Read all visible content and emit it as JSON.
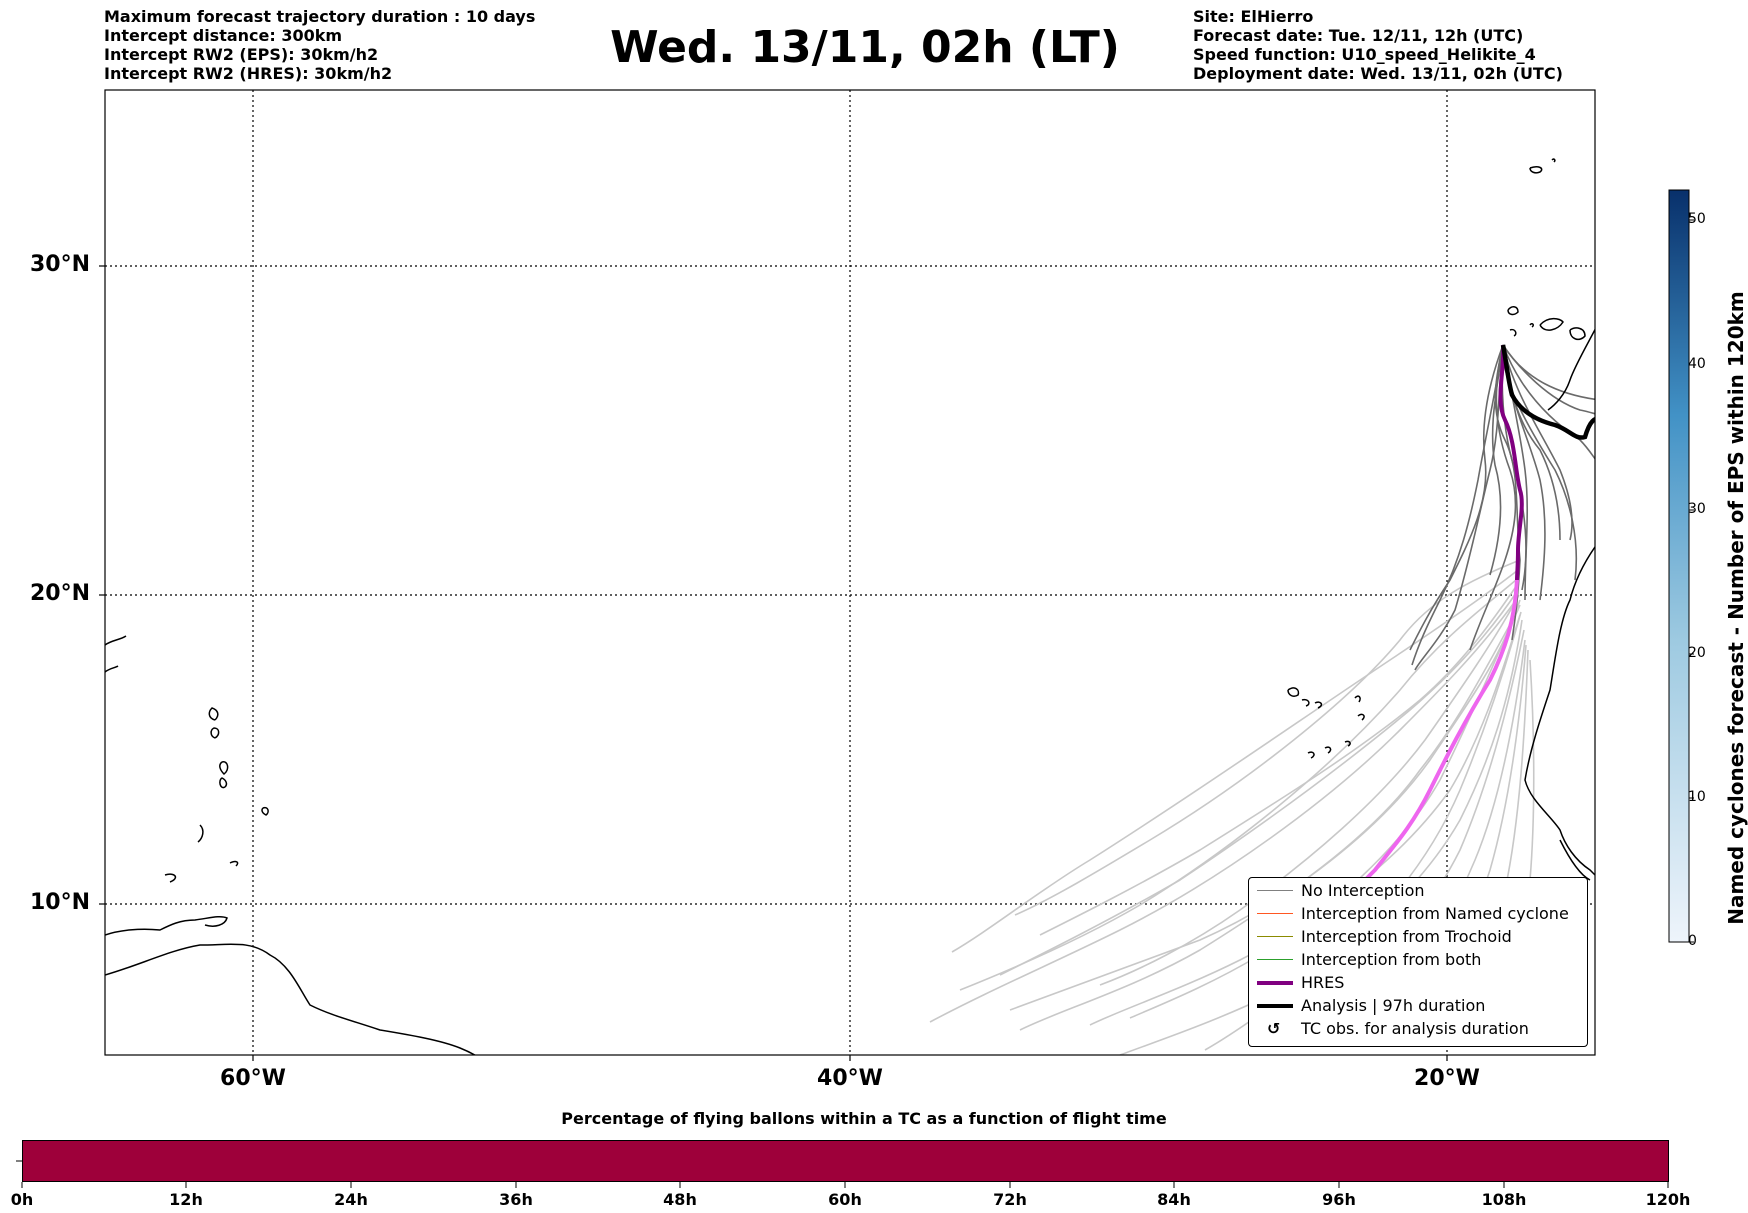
{
  "header": {
    "left_lines": [
      "Maximum forecast trajectory duration : 10 days",
      "Intercept distance: 300km",
      "Intercept RW2 (EPS):  30km/h2",
      "Intercept RW2 (HRES): 30km/h2"
    ],
    "title": "Wed. 13/11, 02h (LT)",
    "right_lines": [
      "Site: ElHierro",
      "Forecast date: Tue. 12/11, 12h (UTC)",
      "Speed function: U10_speed_Helikite_4",
      "Deployment date: Wed. 13/11, 02h (UTC)"
    ]
  },
  "map": {
    "lat_labels": [
      "30°N",
      "20°N",
      "10°N"
    ],
    "lon_labels": [
      "60°W",
      "40°W",
      "20°W"
    ],
    "colors": {
      "eps_track": "#c8c8c8",
      "eps_track_dark": "#6a6a6a",
      "hres": "#800080",
      "hres_later": "#ee66ee",
      "analysis": "#000000",
      "coast": "#000000"
    }
  },
  "legend": {
    "items": [
      {
        "label": "No Interception",
        "color": "#808080",
        "style": "thin"
      },
      {
        "label": "Interception from Named cyclone",
        "color": "#ff5722",
        "style": "thin"
      },
      {
        "label": "Interception from Trochoid",
        "color": "#8b8b00",
        "style": "thin"
      },
      {
        "label": "Interception from both",
        "color": "#2ca02c",
        "style": "thin"
      },
      {
        "label": "HRES",
        "color": "#800080",
        "style": "thick"
      },
      {
        "label": "Analysis | 97h duration",
        "color": "#000000",
        "style": "thick"
      },
      {
        "label": "TC obs. for analysis duration",
        "color": "#000000",
        "style": "symbol",
        "symbol": "↺"
      }
    ]
  },
  "colorbar": {
    "label": "Named cyclones forecast - Number of EPS within 120km",
    "ticks": [
      "0",
      "10",
      "20",
      "30",
      "40",
      "50"
    ],
    "color_low": "#eef4fb",
    "color_high": "#08306b"
  },
  "flight_bar": {
    "title": "Percentage of flying ballons within a TC as a function of flight time",
    "ticks": [
      "0h",
      "12h",
      "24h",
      "36h",
      "48h",
      "60h",
      "72h",
      "84h",
      "96h",
      "108h",
      "120h"
    ],
    "fill_color": "#9e003a",
    "percentage_fill": 100
  }
}
